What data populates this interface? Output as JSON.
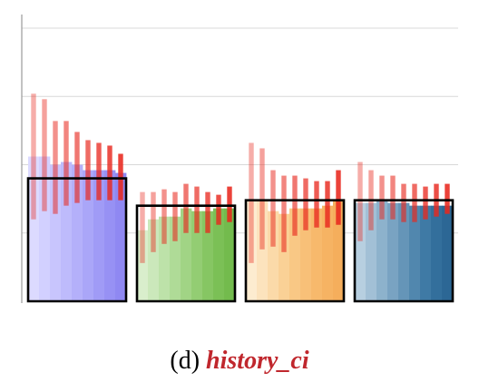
{
  "caption": {
    "prefix": "(d)",
    "name": "history_ci"
  },
  "chart_data": {
    "type": "bar",
    "ylim": [
      0,
      1.05
    ],
    "grid": true,
    "gridlines": [
      0.25,
      0.5,
      0.75,
      1.0
    ],
    "groups": [
      {
        "bar_colors": [
          "#dcdaff",
          "#d2d0ff",
          "#c8c5fd",
          "#bebbfc",
          "#b4b0fa",
          "#aaa6f8",
          "#a09bf6",
          "#9791f4",
          "#8f88f2"
        ],
        "bar_values": [
          0.53,
          0.53,
          0.5,
          0.51,
          0.5,
          0.48,
          0.48,
          0.48,
          0.47
        ],
        "frame_value": 0.45,
        "ci": [
          [
            0.3,
            0.76
          ],
          [
            0.33,
            0.74
          ],
          [
            0.32,
            0.66
          ],
          [
            0.35,
            0.66
          ],
          [
            0.36,
            0.62
          ],
          [
            0.37,
            0.59
          ],
          [
            0.37,
            0.58
          ],
          [
            0.37,
            0.57
          ],
          [
            0.37,
            0.54
          ]
        ]
      },
      {
        "bar_colors": [
          "#d9eecc",
          "#cbe8bb",
          "#bde2a9",
          "#afdb97",
          "#a1d485",
          "#93cd73",
          "#86c663",
          "#7bc056",
          "#73bb4d"
        ],
        "bar_values": [
          0.26,
          0.3,
          0.31,
          0.31,
          0.34,
          0.33,
          0.33,
          0.34,
          0.34
        ],
        "frame_value": 0.35,
        "ci": [
          [
            0.14,
            0.4
          ],
          [
            0.18,
            0.4
          ],
          [
            0.21,
            0.41
          ],
          [
            0.22,
            0.4
          ],
          [
            0.25,
            0.43
          ],
          [
            0.25,
            0.42
          ],
          [
            0.25,
            0.4
          ],
          [
            0.28,
            0.39
          ],
          [
            0.29,
            0.42
          ]
        ]
      },
      {
        "bar_colors": [
          "#fdecd0",
          "#fce3bd",
          "#fbdaa9",
          "#fad196",
          "#f9c885",
          "#f8c078",
          "#f7b96c",
          "#f6b363",
          "#f5ae5c"
        ],
        "bar_values": [
          0.37,
          0.37,
          0.33,
          0.32,
          0.34,
          0.34,
          0.34,
          0.35,
          0.37
        ],
        "frame_value": 0.37,
        "ci": [
          [
            0.14,
            0.58
          ],
          [
            0.19,
            0.56
          ],
          [
            0.2,
            0.48
          ],
          [
            0.18,
            0.46
          ],
          [
            0.24,
            0.46
          ],
          [
            0.26,
            0.45
          ],
          [
            0.27,
            0.44
          ],
          [
            0.27,
            0.44
          ],
          [
            0.28,
            0.48
          ]
        ]
      },
      {
        "bar_colors": [
          "#b7cfe0",
          "#a2c0d6",
          "#8db2cc",
          "#79a3c2",
          "#6595b8",
          "#5187ae",
          "#3f7aa5",
          "#336f9c",
          "#2c6795"
        ],
        "bar_values": [
          0.36,
          0.36,
          0.37,
          0.36,
          0.36,
          0.35,
          0.35,
          0.35,
          0.35
        ],
        "frame_value": 0.37,
        "ci": [
          [
            0.22,
            0.51
          ],
          [
            0.26,
            0.48
          ],
          [
            0.3,
            0.46
          ],
          [
            0.3,
            0.46
          ],
          [
            0.29,
            0.43
          ],
          [
            0.29,
            0.43
          ],
          [
            0.3,
            0.42
          ],
          [
            0.31,
            0.43
          ],
          [
            0.32,
            0.43
          ]
        ]
      }
    ]
  }
}
